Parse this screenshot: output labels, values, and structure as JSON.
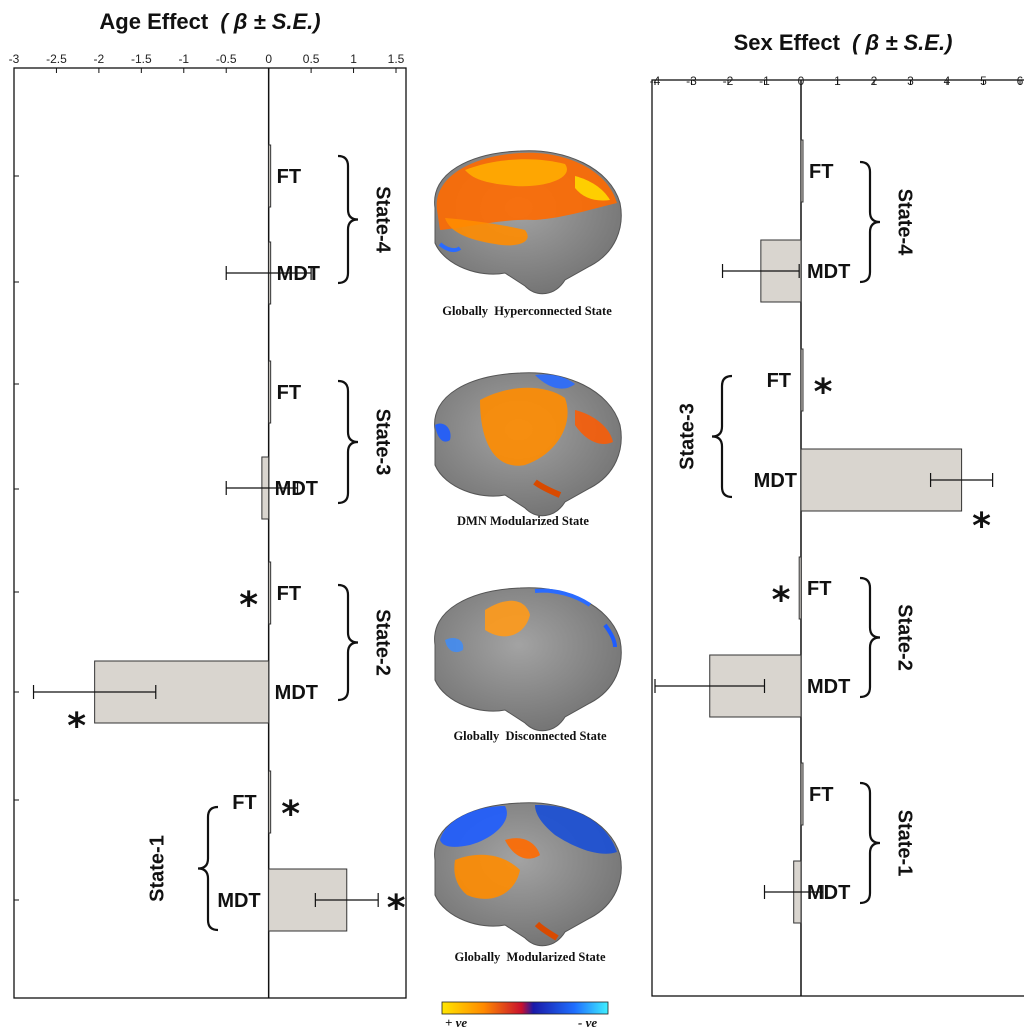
{
  "colors": {
    "bar_fill": "#d9d5cf",
    "bar_stroke": "#333333",
    "axis": "#111111",
    "brain_gray": "#8c8c8c",
    "positive": "#ff7a00",
    "negative": "#1a4fd6"
  },
  "chart_data": [
    {
      "type": "bar",
      "orientation": "horizontal",
      "title_main": "Age Effect",
      "title_paren": "( β ± S.E.)",
      "xlim": [
        -3,
        1.5
      ],
      "xticks": [
        "-3",
        "-2.5",
        "-2",
        "-1.5",
        "-1",
        "-0.5",
        "0",
        "0.5",
        "1",
        "1.5"
      ],
      "grid": false,
      "categories": [
        "State-4 FT",
        "State-4 MDT",
        "State-3 FT",
        "State-3 MDT",
        "State-2 FT",
        "State-2 MDT",
        "State-1 FT",
        "State-1 MDT"
      ],
      "values": [
        0.0,
        0.0,
        0.0,
        -0.08,
        0.0,
        -2.05,
        0.0,
        0.92
      ],
      "errors": [
        0.0,
        0.5,
        0.0,
        0.42,
        0.0,
        0.72,
        0.0,
        0.37
      ],
      "significant": [
        false,
        false,
        false,
        false,
        true,
        true,
        true,
        true
      ],
      "bar_labels": [
        "FT",
        "MDT",
        "FT",
        "MDT",
        "FT",
        "MDT",
        "FT",
        "MDT"
      ],
      "states": [
        "State-4",
        "State-3",
        "State-2",
        "State-1"
      ]
    },
    {
      "type": "bar",
      "orientation": "horizontal",
      "title_main": "Sex Effect",
      "title_paren": "( β ± S.E.)",
      "xlim": [
        -4,
        6
      ],
      "xticks": [
        "-4",
        "-3",
        "-2",
        "-1",
        "0",
        "1",
        "2",
        "3",
        "4",
        "5",
        "6"
      ],
      "grid": false,
      "categories": [
        "State-4 FT",
        "State-4 MDT",
        "State-3 FT",
        "State-3 MDT",
        "State-2 FT",
        "State-2 MDT",
        "State-1 FT",
        "State-1 MDT"
      ],
      "values": [
        0.0,
        -1.1,
        0.05,
        4.4,
        -0.05,
        -2.5,
        0.0,
        -0.2
      ],
      "errors": [
        0.0,
        1.05,
        0.0,
        0.85,
        0.0,
        1.5,
        0.0,
        0.8
      ],
      "significant": [
        false,
        false,
        true,
        true,
        true,
        false,
        false,
        false
      ],
      "bar_labels": [
        "FT",
        "MDT",
        "FT",
        "MDT",
        "FT",
        "MDT",
        "FT",
        "MDT"
      ],
      "states": [
        "State-4",
        "State-3",
        "State-2",
        "State-1"
      ]
    }
  ],
  "brains": [
    {
      "caption": "Globally  Hyperconnected State",
      "icon": "brain-hyperconnected-icon"
    },
    {
      "caption": "DMN Modularized State",
      "icon": "brain-dmn-modularized-icon"
    },
    {
      "caption": "Globally  Disconnected State",
      "icon": "brain-disconnected-icon"
    },
    {
      "caption": "Globally  Modularized State",
      "icon": "brain-modularized-icon"
    }
  ],
  "colorbar": {
    "pos_label": "+ ve",
    "neg_label": "- ve"
  },
  "star_symbol": "*"
}
